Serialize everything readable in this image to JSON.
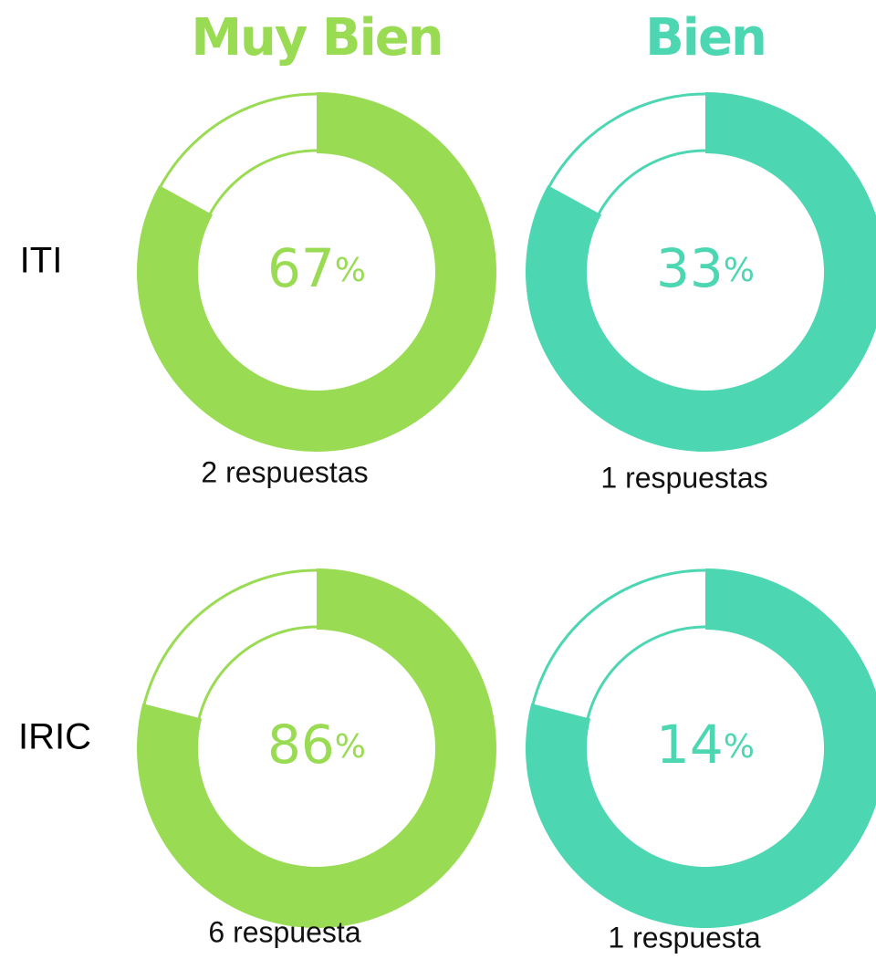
{
  "columns": [
    {
      "title": "Muy Bien",
      "color": "#9adb54"
    },
    {
      "title": "Bien",
      "color": "#4dd6b2"
    }
  ],
  "rows": [
    {
      "label": "ITI",
      "cells": [
        {
          "percent": 67,
          "unit": "%",
          "arc": 83,
          "caption": "2 respuestas"
        },
        {
          "percent": 33,
          "unit": "%",
          "arc": 83,
          "caption": "1 respuestas"
        }
      ]
    },
    {
      "label": "IRIC",
      "cells": [
        {
          "percent": 86,
          "unit": "%",
          "arc": 79,
          "caption": "6 respuesta"
        },
        {
          "percent": 14,
          "unit": "%",
          "arc": 79,
          "caption": "1 respuesta"
        }
      ]
    }
  ]
}
